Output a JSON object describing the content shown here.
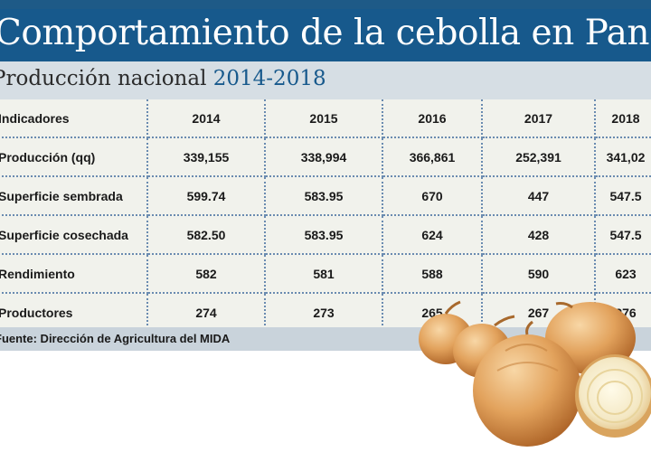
{
  "header": {
    "title": "Comportamiento de la cebolla en Panamá",
    "subtitle_prefix": "Producción nacional",
    "subtitle_years": "2014-2018"
  },
  "table": {
    "header_label": "Indicadores",
    "years": [
      "2014",
      "2015",
      "2016",
      "2017",
      "2018"
    ],
    "rows": [
      {
        "label": "Producción (qq)",
        "values": [
          "339,155",
          "338,994",
          "366,861",
          "252,391",
          "341,02"
        ]
      },
      {
        "label": "Superficie sembrada",
        "values": [
          "599.74",
          "583.95",
          "670",
          "447",
          "547.5"
        ]
      },
      {
        "label": "Superficie cosechada",
        "values": [
          "582.50",
          "583.95",
          "624",
          "428",
          "547.5"
        ]
      },
      {
        "label": "Rendimiento",
        "values": [
          "582",
          "581",
          "588",
          "590",
          "623"
        ]
      },
      {
        "label": "Productores",
        "values": [
          "274",
          "273",
          "265",
          "267",
          "276"
        ]
      }
    ]
  },
  "footer": {
    "source": "Fuente: Dirección de Agricultura del MIDA"
  },
  "colors": {
    "title_band": "#17598c",
    "subtitle_band": "#d6dee4",
    "table_bg": "#f1f2ec",
    "grid_line": "#6a8bb0",
    "source_band": "#c9d3db",
    "onion_skin": "#e2a25c"
  }
}
